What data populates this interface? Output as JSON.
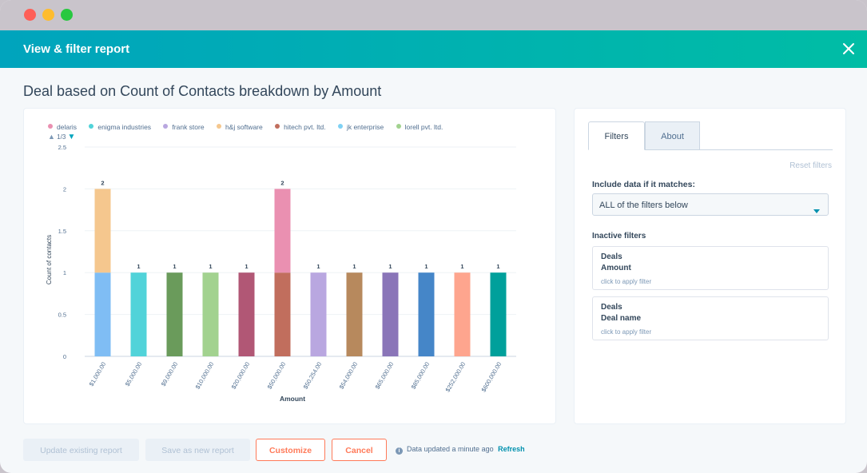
{
  "window": {
    "title": "View & filter report"
  },
  "report_title": "Deal based on Count of Contacts breakdown by Amount",
  "legend": {
    "items": [
      {
        "label": "delaris",
        "color": "#ea90b1"
      },
      {
        "label": "enigma industries",
        "color": "#51d3d9"
      },
      {
        "label": "frank store",
        "color": "#b9a7e0"
      },
      {
        "label": "h&j software",
        "color": "#f5c78e"
      },
      {
        "label": "hitech pvt. ltd.",
        "color": "#c16e5d"
      },
      {
        "label": "jk enterprise",
        "color": "#7fd1f4"
      },
      {
        "label": "lorell pvt. ltd.",
        "color": "#a2d28f"
      }
    ],
    "pager": "1/3"
  },
  "chart_data": {
    "type": "bar",
    "stacked": true,
    "xlabel": "Amount",
    "ylabel": "Count of contacts",
    "ylim": [
      0,
      2.5
    ],
    "yticks": [
      "0",
      "0.5",
      "1",
      "1.5",
      "2",
      "2.5"
    ],
    "grid": true,
    "categories": [
      "$1,000.00",
      "$5,000.00",
      "$9,000.00",
      "$10,000.00",
      "$20,000.00",
      "$50,000.00",
      "$50,254.00",
      "$54,000.00",
      "$65,000.00",
      "$85,000.00",
      "$252,000.00",
      "$600,000.00"
    ],
    "bars": [
      {
        "total": 2,
        "segments": [
          {
            "value": 1,
            "color": "#7fbdf4"
          },
          {
            "value": 1,
            "color": "#f5c78e"
          }
        ]
      },
      {
        "total": 1,
        "segments": [
          {
            "value": 1,
            "color": "#51d3d9"
          }
        ]
      },
      {
        "total": 1,
        "segments": [
          {
            "value": 1,
            "color": "#6a9b5b"
          }
        ]
      },
      {
        "total": 1,
        "segments": [
          {
            "value": 1,
            "color": "#a2d28f"
          }
        ]
      },
      {
        "total": 1,
        "segments": [
          {
            "value": 1,
            "color": "#b15775"
          }
        ]
      },
      {
        "total": 2,
        "segments": [
          {
            "value": 1,
            "color": "#c16e5d"
          },
          {
            "value": 1,
            "color": "#ea90b1"
          }
        ]
      },
      {
        "total": 1,
        "segments": [
          {
            "value": 1,
            "color": "#b9a7e0"
          }
        ]
      },
      {
        "total": 1,
        "segments": [
          {
            "value": 1,
            "color": "#b7895d"
          }
        ]
      },
      {
        "total": 1,
        "segments": [
          {
            "value": 1,
            "color": "#8a75b8"
          }
        ]
      },
      {
        "total": 1,
        "segments": [
          {
            "value": 1,
            "color": "#4586c8"
          }
        ]
      },
      {
        "total": 1,
        "segments": [
          {
            "value": 1,
            "color": "#fea58e"
          }
        ]
      },
      {
        "total": 1,
        "segments": [
          {
            "value": 1,
            "color": "#00a09b"
          }
        ]
      }
    ],
    "data_labels": [
      "2",
      "1",
      "1",
      "1",
      "1",
      "2",
      "1",
      "1",
      "1",
      "1",
      "1",
      "1"
    ]
  },
  "filters_panel": {
    "tabs": [
      {
        "label": "Filters",
        "active": true
      },
      {
        "label": "About",
        "active": false
      }
    ],
    "reset_label": "Reset filters",
    "include_label": "Include data if it matches:",
    "include_select_value": "ALL of the filters below",
    "inactive_label": "Inactive filters",
    "filters": [
      {
        "object": "Deals",
        "property": "Amount",
        "hint": "click to apply filter"
      },
      {
        "object": "Deals",
        "property": "Deal name",
        "hint": "click to apply filter"
      }
    ]
  },
  "footer": {
    "update_label": "Update existing report",
    "save_label": "Save as new report",
    "customize_label": "Customize",
    "cancel_label": "Cancel",
    "status_text": "Data updated a minute ago",
    "refresh_label": "Refresh"
  },
  "colors": {
    "header_start": "#00a4bd",
    "header_end": "#00bda5",
    "accent": "#ff7a59",
    "link": "#0091ae"
  }
}
